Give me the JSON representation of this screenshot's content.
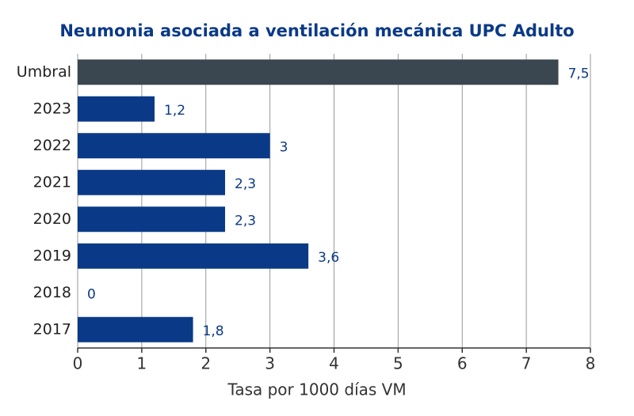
{
  "chart_data": {
    "type": "barh",
    "title": "Neumonia asociada a ventilación mecánica UPC Adulto",
    "xlabel": "Tasa por 1000 días VM",
    "categories": [
      "Umbral",
      "2023",
      "2022",
      "2021",
      "2020",
      "2019",
      "2018",
      "2017"
    ],
    "values": [
      7.5,
      1.2,
      3,
      2.3,
      2.3,
      3.6,
      0,
      1.8
    ],
    "value_labels": [
      "7,5",
      "1,2",
      "3",
      "2,3",
      "2,3",
      "3,6",
      "0",
      "1,8"
    ],
    "colors": [
      "#3a4750",
      "#0a3a87",
      "#0a3a87",
      "#0a3a87",
      "#0a3a87",
      "#0a3a87",
      "#0a3a87",
      "#0a3a87"
    ],
    "xlim": [
      0,
      8
    ],
    "xticks": [
      0,
      1,
      2,
      3,
      4,
      5,
      6,
      7,
      8
    ],
    "grid": true
  }
}
